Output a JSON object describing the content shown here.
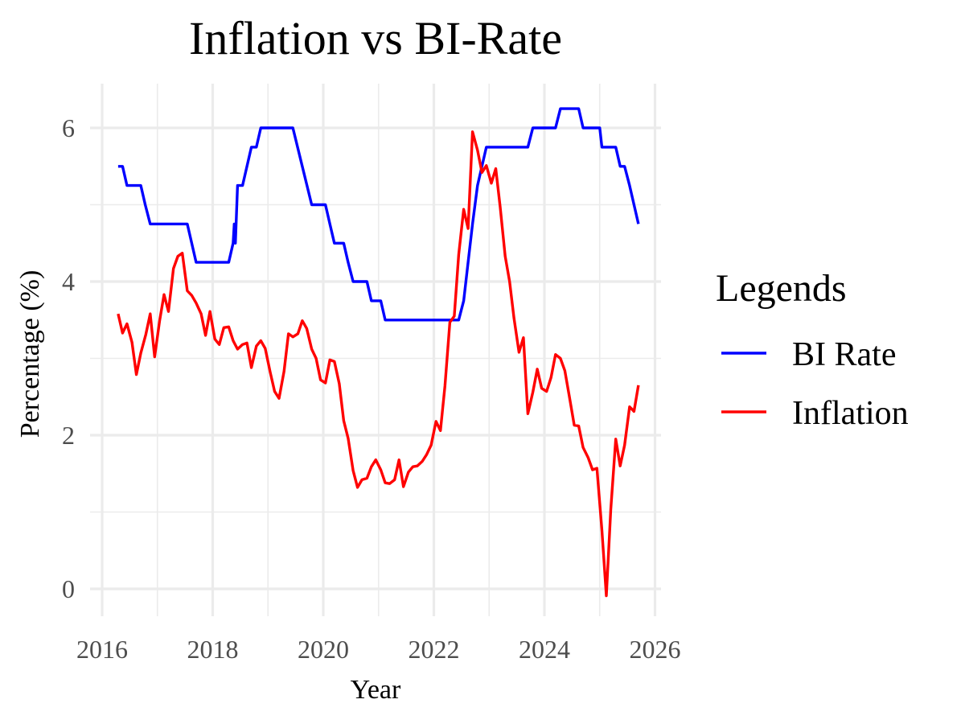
{
  "chart_data": {
    "type": "line",
    "title": "Inflation vs BI-Rate",
    "xlabel": "Year",
    "ylabel": "Percentage (%)",
    "xlim": [
      2016.0,
      2026.0
    ],
    "ylim": [
      -0.25,
      6.5
    ],
    "x_ticks": [
      "2016",
      "2018",
      "2020",
      "2022",
      "2024",
      "2026"
    ],
    "y_ticks": [
      "0",
      "2",
      "4",
      "6"
    ],
    "grid": true,
    "legend": {
      "title": "Legends",
      "position": "right",
      "entries": [
        "BI Rate",
        "Inflation"
      ]
    },
    "series": [
      {
        "name": "BI Rate",
        "color": "#0000ff",
        "points": [
          [
            2016.29,
            5.5
          ],
          [
            2016.37,
            5.5
          ],
          [
            2016.45,
            5.25
          ],
          [
            2016.7,
            5.25
          ],
          [
            2016.78,
            5.0
          ],
          [
            2016.87,
            4.75
          ],
          [
            2017.54,
            4.75
          ],
          [
            2017.62,
            4.5
          ],
          [
            2017.7,
            4.25
          ],
          [
            2018.29,
            4.25
          ],
          [
            2018.37,
            4.5
          ],
          [
            2018.39,
            4.75
          ],
          [
            2018.41,
            4.5
          ],
          [
            2018.45,
            5.25
          ],
          [
            2018.54,
            5.25
          ],
          [
            2018.62,
            5.5
          ],
          [
            2018.7,
            5.75
          ],
          [
            2018.79,
            5.75
          ],
          [
            2018.87,
            6.0
          ],
          [
            2019.45,
            6.0
          ],
          [
            2019.62,
            5.5
          ],
          [
            2019.79,
            5.0
          ],
          [
            2020.04,
            5.0
          ],
          [
            2020.12,
            4.75
          ],
          [
            2020.2,
            4.5
          ],
          [
            2020.37,
            4.5
          ],
          [
            2020.45,
            4.25
          ],
          [
            2020.54,
            4.0
          ],
          [
            2020.79,
            4.0
          ],
          [
            2020.87,
            3.75
          ],
          [
            2021.04,
            3.75
          ],
          [
            2021.12,
            3.5
          ],
          [
            2022.45,
            3.5
          ],
          [
            2022.54,
            3.75
          ],
          [
            2022.62,
            4.25
          ],
          [
            2022.7,
            4.75
          ],
          [
            2022.79,
            5.25
          ],
          [
            2022.87,
            5.5
          ],
          [
            2022.95,
            5.75
          ],
          [
            2023.7,
            5.75
          ],
          [
            2023.79,
            6.0
          ],
          [
            2024.2,
            6.0
          ],
          [
            2024.29,
            6.25
          ],
          [
            2024.62,
            6.25
          ],
          [
            2024.7,
            6.0
          ],
          [
            2025.0,
            6.0
          ],
          [
            2025.04,
            5.75
          ],
          [
            2025.29,
            5.75
          ],
          [
            2025.37,
            5.5
          ],
          [
            2025.45,
            5.5
          ],
          [
            2025.54,
            5.25
          ],
          [
            2025.7,
            4.75
          ]
        ]
      },
      {
        "name": "Inflation",
        "color": "#ff0000",
        "points": [
          [
            2016.29,
            3.58
          ],
          [
            2016.37,
            3.33
          ],
          [
            2016.45,
            3.45
          ],
          [
            2016.54,
            3.21
          ],
          [
            2016.62,
            2.79
          ],
          [
            2016.7,
            3.07
          ],
          [
            2016.79,
            3.31
          ],
          [
            2016.87,
            3.58
          ],
          [
            2016.95,
            3.02
          ],
          [
            2017.04,
            3.49
          ],
          [
            2017.12,
            3.83
          ],
          [
            2017.2,
            3.61
          ],
          [
            2017.29,
            4.17
          ],
          [
            2017.37,
            4.33
          ],
          [
            2017.45,
            4.37
          ],
          [
            2017.54,
            3.88
          ],
          [
            2017.62,
            3.82
          ],
          [
            2017.7,
            3.72
          ],
          [
            2017.79,
            3.58
          ],
          [
            2017.87,
            3.3
          ],
          [
            2017.95,
            3.61
          ],
          [
            2018.04,
            3.25
          ],
          [
            2018.12,
            3.18
          ],
          [
            2018.2,
            3.4
          ],
          [
            2018.29,
            3.41
          ],
          [
            2018.37,
            3.23
          ],
          [
            2018.45,
            3.12
          ],
          [
            2018.54,
            3.18
          ],
          [
            2018.62,
            3.2
          ],
          [
            2018.7,
            2.88
          ],
          [
            2018.79,
            3.16
          ],
          [
            2018.87,
            3.23
          ],
          [
            2018.95,
            3.13
          ],
          [
            2019.04,
            2.82
          ],
          [
            2019.12,
            2.57
          ],
          [
            2019.2,
            2.48
          ],
          [
            2019.29,
            2.83
          ],
          [
            2019.37,
            3.32
          ],
          [
            2019.45,
            3.28
          ],
          [
            2019.54,
            3.32
          ],
          [
            2019.62,
            3.49
          ],
          [
            2019.7,
            3.39
          ],
          [
            2019.79,
            3.12
          ],
          [
            2019.87,
            3.0
          ],
          [
            2019.95,
            2.72
          ],
          [
            2020.04,
            2.68
          ],
          [
            2020.12,
            2.98
          ],
          [
            2020.2,
            2.96
          ],
          [
            2020.29,
            2.67
          ],
          [
            2020.37,
            2.19
          ],
          [
            2020.45,
            1.96
          ],
          [
            2020.54,
            1.54
          ],
          [
            2020.62,
            1.32
          ],
          [
            2020.7,
            1.42
          ],
          [
            2020.79,
            1.44
          ],
          [
            2020.87,
            1.59
          ],
          [
            2020.95,
            1.68
          ],
          [
            2021.04,
            1.55
          ],
          [
            2021.12,
            1.38
          ],
          [
            2021.2,
            1.37
          ],
          [
            2021.29,
            1.42
          ],
          [
            2021.37,
            1.68
          ],
          [
            2021.45,
            1.33
          ],
          [
            2021.54,
            1.52
          ],
          [
            2021.62,
            1.59
          ],
          [
            2021.7,
            1.6
          ],
          [
            2021.79,
            1.66
          ],
          [
            2021.87,
            1.75
          ],
          [
            2021.95,
            1.87
          ],
          [
            2022.04,
            2.18
          ],
          [
            2022.12,
            2.06
          ],
          [
            2022.2,
            2.64
          ],
          [
            2022.29,
            3.47
          ],
          [
            2022.37,
            3.55
          ],
          [
            2022.45,
            4.35
          ],
          [
            2022.54,
            4.94
          ],
          [
            2022.62,
            4.69
          ],
          [
            2022.7,
            5.95
          ],
          [
            2022.79,
            5.71
          ],
          [
            2022.87,
            5.42
          ],
          [
            2022.95,
            5.51
          ],
          [
            2023.04,
            5.28
          ],
          [
            2023.12,
            5.47
          ],
          [
            2023.2,
            4.97
          ],
          [
            2023.29,
            4.33
          ],
          [
            2023.37,
            4.0
          ],
          [
            2023.45,
            3.52
          ],
          [
            2023.54,
            3.08
          ],
          [
            2023.62,
            3.27
          ],
          [
            2023.7,
            2.28
          ],
          [
            2023.79,
            2.56
          ],
          [
            2023.87,
            2.86
          ],
          [
            2023.95,
            2.61
          ],
          [
            2024.04,
            2.57
          ],
          [
            2024.12,
            2.75
          ],
          [
            2024.2,
            3.05
          ],
          [
            2024.29,
            3.0
          ],
          [
            2024.37,
            2.84
          ],
          [
            2024.45,
            2.51
          ],
          [
            2024.54,
            2.13
          ],
          [
            2024.62,
            2.12
          ],
          [
            2024.7,
            1.84
          ],
          [
            2024.79,
            1.71
          ],
          [
            2024.87,
            1.55
          ],
          [
            2024.95,
            1.57
          ],
          [
            2025.04,
            0.76
          ],
          [
            2025.12,
            -0.09
          ],
          [
            2025.2,
            1.03
          ],
          [
            2025.29,
            1.95
          ],
          [
            2025.37,
            1.6
          ],
          [
            2025.45,
            1.87
          ],
          [
            2025.54,
            2.37
          ],
          [
            2025.62,
            2.31
          ],
          [
            2025.7,
            2.65
          ]
        ]
      }
    ]
  }
}
